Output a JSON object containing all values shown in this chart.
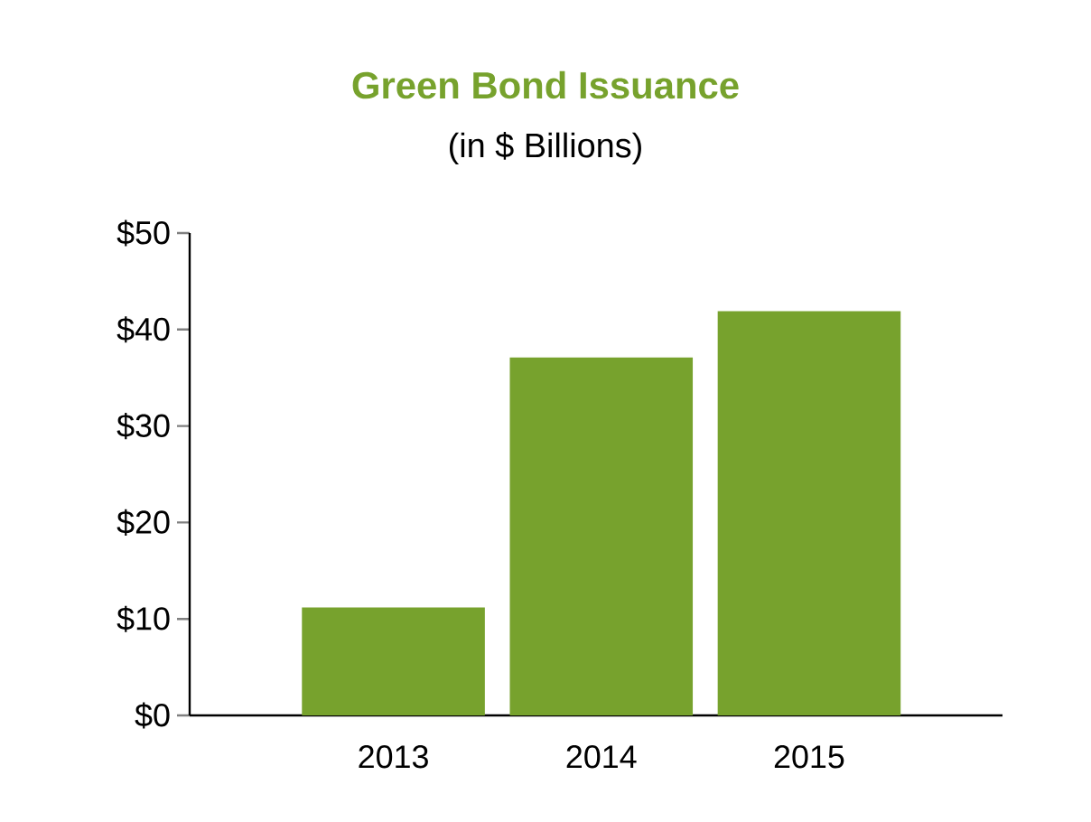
{
  "chart_data": {
    "type": "bar",
    "title": "Green Bond Issuance",
    "subtitle": "(in $ Billions)",
    "categories": [
      "2013",
      "2014",
      "2015"
    ],
    "values": [
      11.2,
      37.1,
      41.9
    ],
    "color": "#77a22d",
    "ylim": [
      0,
      50
    ],
    "yticks": [
      {
        "value": 0,
        "label": "$0"
      },
      {
        "value": 10,
        "label": "$10"
      },
      {
        "value": 20,
        "label": "$20"
      },
      {
        "value": 30,
        "label": "$30"
      },
      {
        "value": 40,
        "label": "$40"
      },
      {
        "value": 50,
        "label": "$50"
      }
    ],
    "grid": false
  }
}
